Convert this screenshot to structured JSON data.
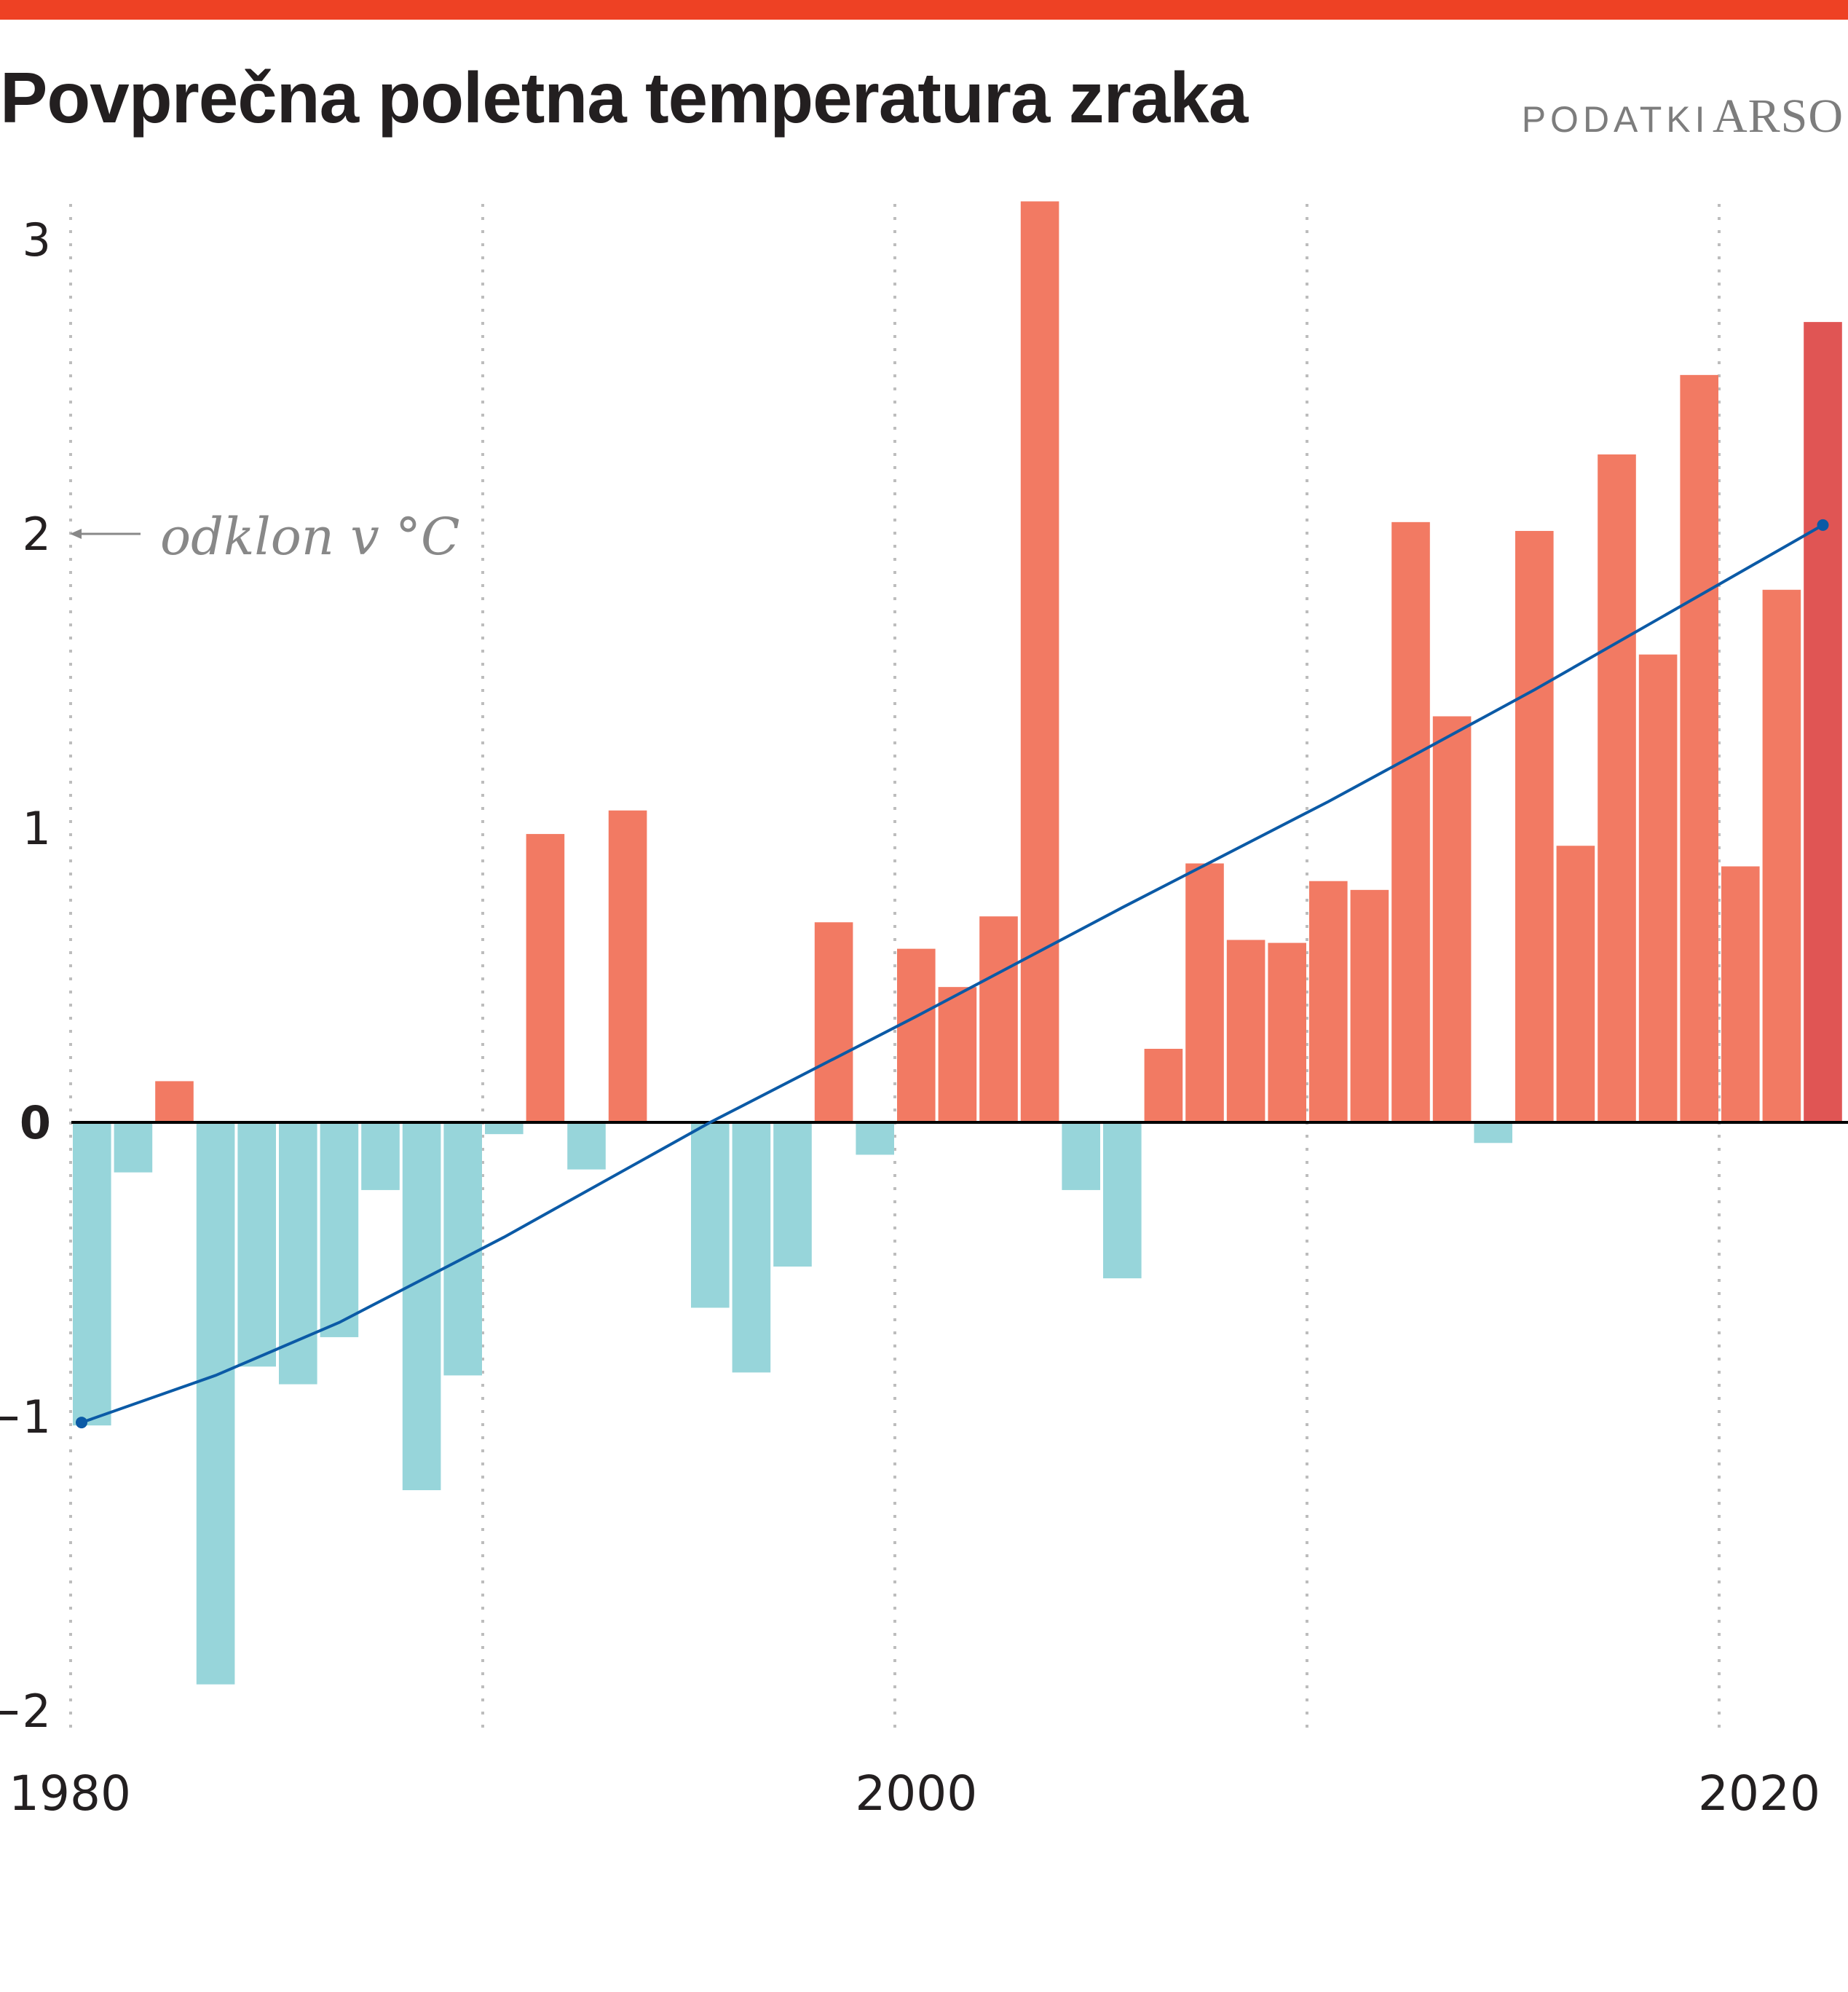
{
  "header": {
    "title": "Povprečna poletna temperatura zraka",
    "source_label": "PODATKI",
    "source_org": "ARSO",
    "accent_color": "#ee4124"
  },
  "chart_data": {
    "type": "bar",
    "title": "Povprečna poletna temperatura zraka",
    "xlabel": "",
    "ylabel": "odklon v °C",
    "annotation": "odklon v °C",
    "ylim": [
      -2,
      3.1
    ],
    "yticks": [
      3,
      2,
      1,
      0,
      -1,
      -2
    ],
    "ytick_labels": [
      "3",
      "2",
      "1",
      "0",
      "−1",
      "−2"
    ],
    "xticks": [
      1980,
      2000,
      2020
    ],
    "xtick_labels": [
      "1980",
      "2000",
      "2020"
    ],
    "gridlines_x": [
      1980,
      1990,
      2000,
      2010,
      2020
    ],
    "grid": "vertical dotted",
    "colors": {
      "positive": "#f27a63",
      "negative": "#97d5da",
      "highlight": "#e05554",
      "trend": "#0b5aa6",
      "zero_line": "#000000"
    },
    "categories": [
      1980,
      1981,
      1982,
      1983,
      1984,
      1985,
      1986,
      1987,
      1988,
      1989,
      1990,
      1991,
      1992,
      1993,
      1994,
      1995,
      1996,
      1997,
      1998,
      1999,
      2000,
      2001,
      2002,
      2003,
      2004,
      2005,
      2006,
      2007,
      2008,
      2009,
      2010,
      2011,
      2012,
      2013,
      2014,
      2015,
      2016,
      2017,
      2018,
      2019,
      2020,
      2021,
      2022
    ],
    "values": [
      -1.03,
      -0.17,
      0.14,
      -1.91,
      -0.83,
      -0.89,
      -0.73,
      -0.23,
      -1.25,
      -0.86,
      -0.04,
      0.98,
      -0.16,
      1.06,
      0.0,
      -0.63,
      -0.85,
      -0.49,
      0.68,
      -0.11,
      0.59,
      0.46,
      0.7,
      3.13,
      -0.23,
      -0.53,
      0.25,
      0.88,
      0.62,
      0.61,
      0.82,
      0.79,
      2.04,
      1.38,
      -0.07,
      2.01,
      0.94,
      2.27,
      1.59,
      2.54,
      0.87,
      1.81,
      2.72
    ],
    "highlight_year": 2022,
    "trend": {
      "name": "trend",
      "x": [
        1980,
        1983,
        1986,
        1990,
        1995,
        2000,
        2005,
        2010,
        2015,
        2022
      ],
      "y": [
        -1.02,
        -0.86,
        -0.68,
        -0.39,
        0.0,
        0.36,
        0.73,
        1.09,
        1.47,
        2.03
      ],
      "end_markers": true
    }
  }
}
